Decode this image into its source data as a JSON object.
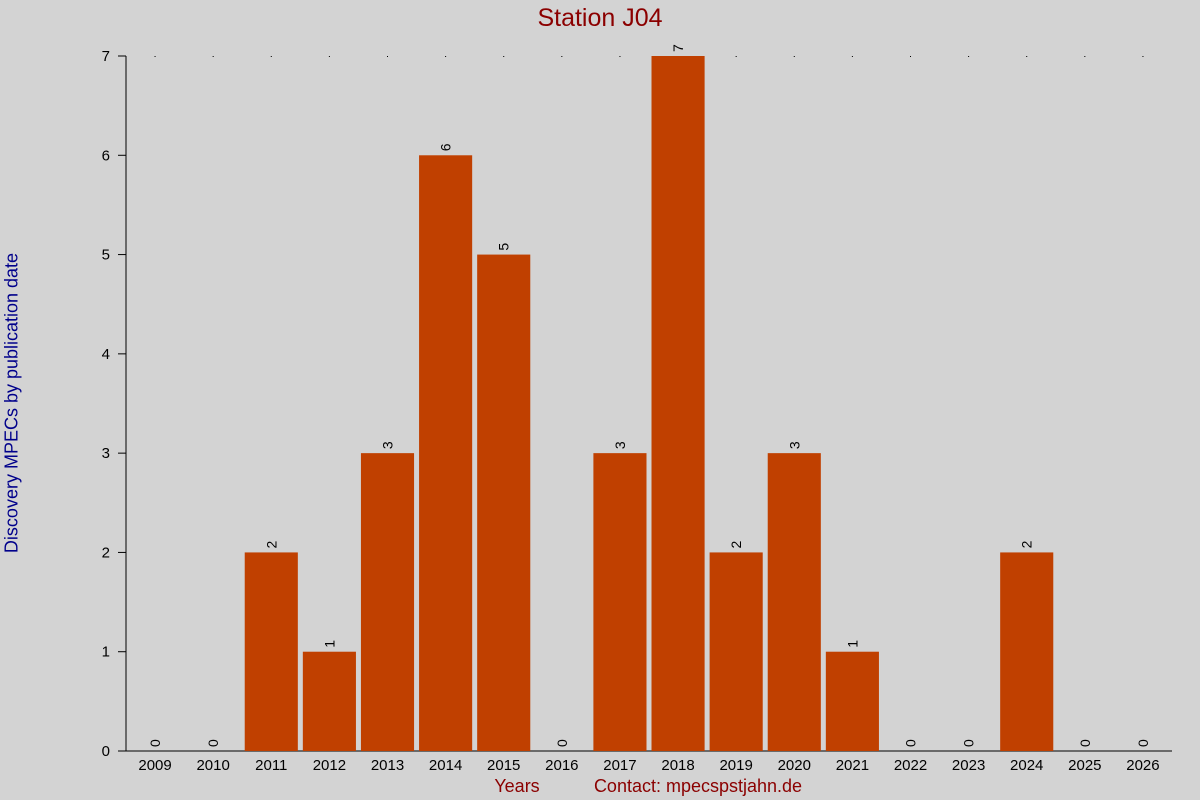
{
  "chart_data": {
    "type": "bar",
    "title": "Station J04",
    "xlabel": "Years",
    "ylabel": "Discovery MPECs by publication date",
    "footer": "Contact: mpecspstjahn.de",
    "categories": [
      "2009",
      "2010",
      "2011",
      "2012",
      "2013",
      "2014",
      "2015",
      "2016",
      "2017",
      "2018",
      "2019",
      "2020",
      "2021",
      "2022",
      "2023",
      "2024",
      "2025",
      "2026"
    ],
    "values": [
      0,
      0,
      2,
      1,
      3,
      6,
      5,
      0,
      3,
      7,
      2,
      3,
      1,
      0,
      0,
      2,
      0,
      0
    ],
    "ylim": [
      0,
      7
    ],
    "yticks": [
      0,
      1,
      2,
      3,
      4,
      5,
      6,
      7
    ],
    "bar_color": "#c04000",
    "data_labels": true,
    "grid": false
  }
}
